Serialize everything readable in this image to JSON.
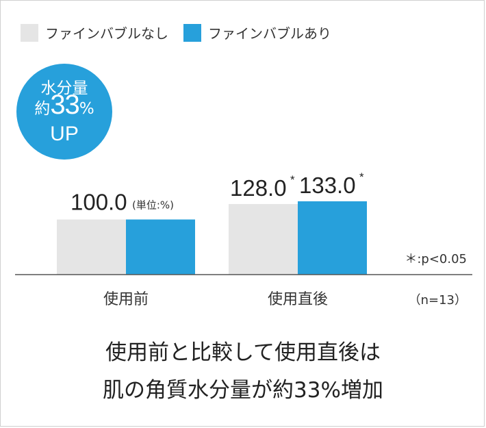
{
  "legend": [
    {
      "label": "ファインバブルなし",
      "color": "#e5e5e5"
    },
    {
      "label": "ファインバブルあり",
      "color": "#27a0db"
    }
  ],
  "badge": {
    "line1": "水分量",
    "prefix": "約",
    "number": "33",
    "suffix": "%",
    "line3": "UP"
  },
  "unit_note": "(単位:%)",
  "significance_note": "＊:p<0.05",
  "sample_note": "（n=13）",
  "caption": {
    "line1": "使用前と比較して使用直後は",
    "line2": "肌の角質水分量が約33%増加"
  },
  "chart_data": {
    "type": "bar",
    "categories": [
      "使用前",
      "使用直後"
    ],
    "series": [
      {
        "name": "ファインバブルなし",
        "values": [
          100.0,
          128.0
        ],
        "color": "#e5e5e5"
      },
      {
        "name": "ファインバブルあり",
        "values": [
          100.0,
          133.0
        ],
        "color": "#27a0db"
      }
    ],
    "data_labels": [
      {
        "category": "使用前",
        "text": "100.0",
        "star": ""
      },
      {
        "category": "使用直後",
        "series": "ファインバブルなし",
        "text": "128.0",
        "star": "*"
      },
      {
        "category": "使用直後",
        "series": "ファインバブルあり",
        "text": "133.0",
        "star": "*"
      }
    ],
    "xlabel": "",
    "ylabel": "",
    "grid": false
  }
}
